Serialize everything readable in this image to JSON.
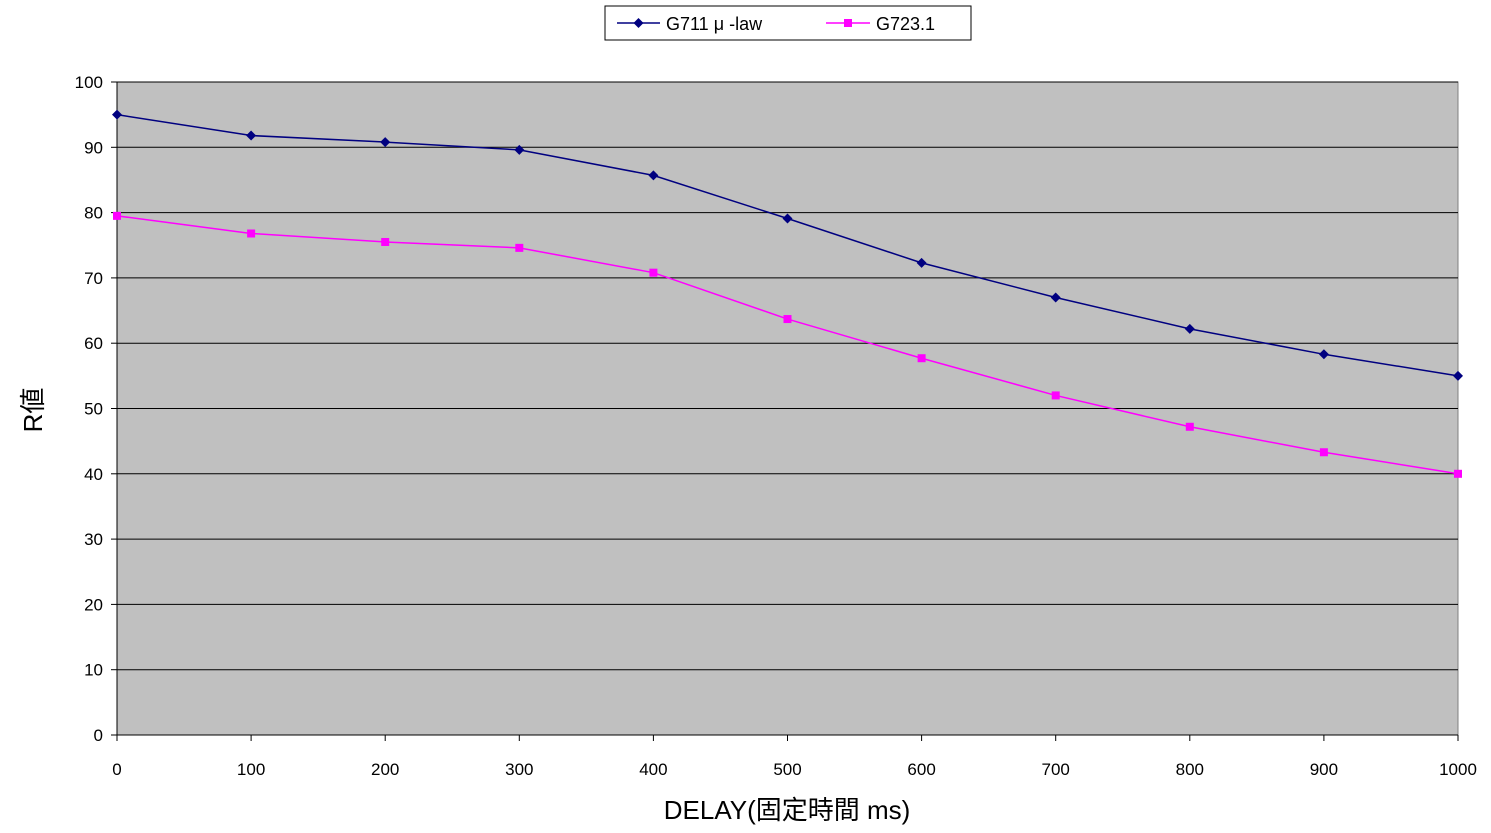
{
  "chart_data": {
    "type": "line",
    "title": "",
    "xlabel": "DELAY(固定時間 ms)",
    "ylabel": "R値",
    "x": [
      0,
      100,
      200,
      300,
      400,
      500,
      600,
      700,
      800,
      900,
      1000
    ],
    "xlim": [
      0,
      1000
    ],
    "ylim": [
      0,
      100
    ],
    "xticks": [
      0,
      100,
      200,
      300,
      400,
      500,
      600,
      700,
      800,
      900,
      1000
    ],
    "yticks": [
      0,
      10,
      20,
      30,
      40,
      50,
      60,
      70,
      80,
      90,
      100
    ],
    "grid": "horizontal",
    "legend_position": "top-center",
    "plot_background": "#c0c0c0",
    "series": [
      {
        "name": "G711  μ -law",
        "color": "#000080",
        "marker": "diamond",
        "values": [
          95.0,
          91.8,
          90.8,
          89.6,
          85.7,
          79.1,
          72.3,
          67.0,
          62.2,
          58.3,
          55.0
        ]
      },
      {
        "name": "G723.1",
        "color": "#ff00ff",
        "marker": "square",
        "values": [
          79.5,
          76.8,
          75.5,
          74.6,
          70.8,
          63.7,
          57.7,
          52.0,
          47.2,
          43.3,
          40.0
        ]
      }
    ]
  }
}
